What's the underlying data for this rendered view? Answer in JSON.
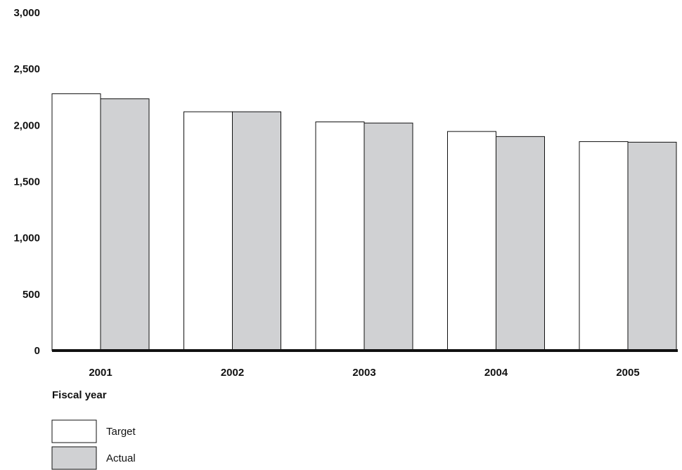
{
  "chart_data": {
    "type": "bar",
    "categories": [
      "2001",
      "2002",
      "2003",
      "2004",
      "2005"
    ],
    "series": [
      {
        "name": "Target",
        "values": [
          2280,
          2120,
          2030,
          1945,
          1855
        ],
        "color": "#ffffff"
      },
      {
        "name": "Actual",
        "values": [
          2235,
          2120,
          2020,
          1900,
          1850
        ],
        "color": "#d0d1d3"
      }
    ],
    "yticks": [
      "0",
      "500",
      "1,000",
      "1,500",
      "2,000",
      "2,500",
      "3,000"
    ],
    "ylim": [
      0,
      3000
    ],
    "title": "",
    "xlabel": "Fiscal year",
    "ylabel": "",
    "grid": false,
    "legend_position": "bottom-left"
  }
}
